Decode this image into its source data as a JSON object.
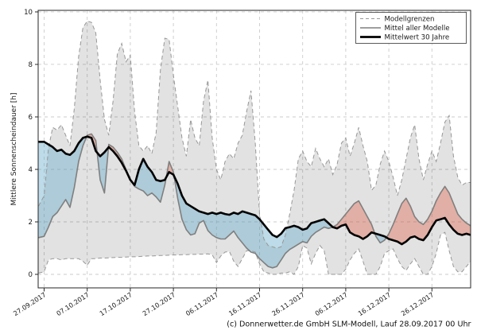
{
  "figure": {
    "ylabel": "Mittlere Sonnenscheindauer [h]",
    "caption": "(c) Donnerwetter.de GmbH SLM-Modell, Lauf 28.09.2017 00 Uhr",
    "legend": {
      "items": [
        {
          "label": "Modellgrenzen",
          "style": "dashed-gray"
        },
        {
          "label": "Mittel aller Modelle",
          "style": "solid-gray"
        },
        {
          "label": "Mittelwert 30 Jahre",
          "style": "solid-black-thick"
        }
      ]
    },
    "colors": {
      "envelope_fill": "rgba(0,0,0,0.115)",
      "envelope_edge": "#979797",
      "model_mean_line": "#7f7f7f",
      "climatology_line": "#000000",
      "positive_anomaly_fill": "rgba(225,112,92,0.45)",
      "negative_anomaly_fill": "rgba(108,175,205,0.45)",
      "grid": "#cbcbcb",
      "spine": "#262626"
    }
  },
  "chart_data": {
    "type": "line",
    "title": "",
    "xlabel": "",
    "ylabel": "Mittlere Sonnenscheindauer [h]",
    "grid": true,
    "legend_position": "upper right",
    "ylim": [
      -0.515,
      10.06
    ],
    "y_ticks": [
      0,
      2,
      4,
      6,
      8,
      10
    ],
    "x_tick_days": [
      0,
      10,
      20,
      30,
      40,
      50,
      60,
      70,
      80,
      90
    ],
    "x_tick_labels": [
      "27.09.2017",
      "07.10.2017",
      "17.10.2017",
      "27.10.2017",
      "06.11.2017",
      "16.11.2017",
      "26.11.2017",
      "06.12.2017",
      "16.12.2017",
      "26.12.2017"
    ],
    "x_start_day": -1,
    "series": [
      {
        "name": "Modellgrenzen (oben)",
        "values": [
          2.6,
          3.0,
          4.8,
          5.6,
          5.5,
          5.7,
          5.3,
          4.9,
          6.3,
          8.3,
          9.4,
          9.65,
          9.6,
          9.2,
          7.4,
          5.9,
          5.3,
          6.6,
          8.4,
          8.8,
          8.1,
          8.35,
          6.2,
          4.9,
          4.7,
          4.9,
          4.6,
          5.4,
          7.8,
          9.0,
          8.95,
          7.6,
          6.4,
          5.2,
          4.5,
          5.9,
          5.2,
          4.9,
          6.6,
          7.4,
          5.2,
          4.0,
          3.6,
          4.3,
          4.6,
          4.4,
          5.0,
          5.3,
          6.2,
          7.0,
          5.0,
          2.3,
          1.35,
          1.1,
          1.05,
          1.0,
          1.05,
          1.5,
          2.3,
          3.2,
          4.4,
          4.7,
          4.3,
          4.1,
          4.8,
          4.4,
          4.1,
          4.4,
          3.8,
          4.2,
          5.0,
          5.2,
          4.5,
          5.0,
          5.6,
          4.9,
          4.3,
          3.2,
          3.4,
          4.2,
          4.7,
          4.3,
          3.7,
          3.0,
          3.6,
          4.4,
          5.2,
          5.7,
          4.4,
          3.6,
          4.2,
          4.7,
          4.3,
          5.0,
          5.8,
          6.05,
          4.5,
          3.7,
          3.4,
          3.5,
          3.5
        ]
      },
      {
        "name": "Modellgrenzen (unten)",
        "values": [
          0.05,
          0.1,
          0.55,
          0.6,
          0.6,
          0.55,
          0.6,
          0.6,
          0.6,
          0.6,
          0.5,
          0.35,
          0.6,
          0.6,
          0.62,
          0.62,
          0.63,
          0.64,
          0.65,
          0.65,
          0.66,
          0.67,
          0.67,
          0.68,
          0.69,
          0.7,
          0.7,
          0.71,
          0.72,
          0.72,
          0.73,
          0.74,
          0.74,
          0.75,
          0.75,
          0.76,
          0.76,
          0.77,
          0.77,
          0.78,
          0.75,
          0.45,
          0.7,
          0.85,
          0.87,
          0.5,
          0.3,
          0.6,
          0.9,
          0.9,
          0.85,
          0.4,
          0.1,
          0.05,
          0.0,
          0.0,
          0.05,
          0.05,
          0.1,
          0.0,
          0.3,
          1.1,
          1.0,
          0.4,
          0.8,
          1.1,
          0.9,
          0.0,
          0.0,
          0.0,
          0.0,
          0.2,
          0.55,
          0.8,
          0.97,
          0.5,
          0.0,
          0.0,
          0.0,
          0.3,
          0.8,
          0.9,
          0.97,
          0.6,
          0.3,
          0.15,
          0.4,
          0.6,
          0.3,
          0.0,
          0.0,
          0.3,
          0.8,
          1.5,
          1.6,
          0.9,
          0.3,
          0.1,
          0.1,
          0.3,
          0.5
        ]
      },
      {
        "name": "Mittel aller Modelle",
        "values": [
          1.4,
          1.45,
          1.8,
          2.2,
          2.35,
          2.6,
          2.85,
          2.55,
          3.3,
          4.3,
          4.9,
          5.3,
          5.35,
          5.1,
          3.6,
          3.1,
          4.95,
          4.85,
          4.65,
          4.4,
          4.0,
          3.6,
          3.35,
          3.25,
          3.18,
          3.0,
          3.1,
          2.95,
          2.75,
          3.4,
          4.3,
          3.9,
          2.9,
          2.1,
          1.7,
          1.5,
          1.55,
          1.95,
          2.05,
          1.67,
          1.5,
          1.4,
          1.35,
          1.35,
          1.5,
          1.65,
          1.4,
          1.2,
          1.0,
          0.85,
          0.8,
          0.6,
          0.45,
          0.3,
          0.25,
          0.3,
          0.55,
          0.8,
          0.95,
          1.05,
          1.15,
          1.25,
          1.2,
          1.45,
          1.6,
          1.7,
          1.8,
          1.75,
          1.8,
          1.9,
          2.1,
          2.3,
          2.5,
          2.7,
          2.8,
          2.5,
          2.2,
          1.9,
          1.45,
          1.2,
          1.3,
          1.55,
          1.9,
          2.3,
          2.7,
          2.9,
          2.6,
          2.2,
          2.0,
          1.9,
          2.1,
          2.4,
          2.8,
          3.1,
          3.35,
          3.1,
          2.7,
          2.3,
          2.1,
          1.95,
          1.85
        ]
      },
      {
        "name": "Mittelwert 30 Jahre",
        "values": [
          5.05,
          5.05,
          4.95,
          4.85,
          4.7,
          4.75,
          4.6,
          4.55,
          4.7,
          5.0,
          5.2,
          5.25,
          5.2,
          4.7,
          4.5,
          4.65,
          4.85,
          4.7,
          4.5,
          4.25,
          3.95,
          3.6,
          3.4,
          4.0,
          4.4,
          4.1,
          3.9,
          3.6,
          3.55,
          3.6,
          3.9,
          3.8,
          3.45,
          3.0,
          2.7,
          2.6,
          2.5,
          2.4,
          2.35,
          2.3,
          2.35,
          2.3,
          2.35,
          2.3,
          2.27,
          2.35,
          2.3,
          2.4,
          2.35,
          2.3,
          2.25,
          2.1,
          1.9,
          1.7,
          1.5,
          1.42,
          1.55,
          1.76,
          1.8,
          1.85,
          1.8,
          1.7,
          1.75,
          1.95,
          2.0,
          2.05,
          2.1,
          1.95,
          1.8,
          1.75,
          1.85,
          1.9,
          1.6,
          1.5,
          1.45,
          1.35,
          1.45,
          1.6,
          1.55,
          1.5,
          1.45,
          1.35,
          1.3,
          1.25,
          1.15,
          1.25,
          1.4,
          1.45,
          1.35,
          1.3,
          1.5,
          1.8,
          2.05,
          2.1,
          2.15,
          1.9,
          1.7,
          1.55,
          1.5,
          1.55,
          1.5
        ]
      }
    ]
  }
}
